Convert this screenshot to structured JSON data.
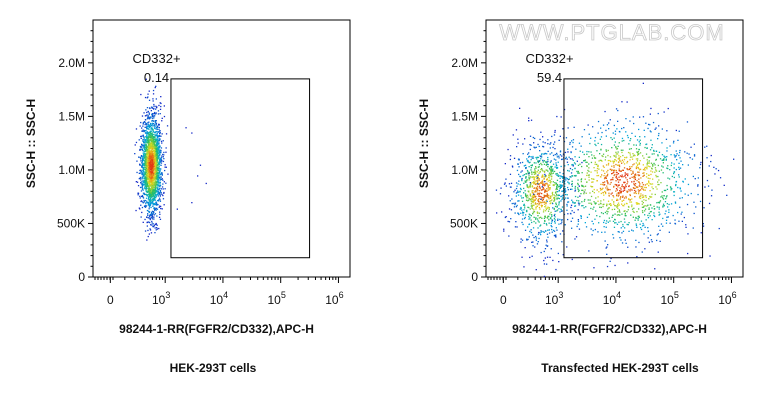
{
  "watermark": "WWW.PTGLAB.COM",
  "chart_data": [
    {
      "type": "scatter",
      "title": "",
      "caption": "HEK-293T cells",
      "xlabel": "98244-1-RR(FGFR2/CD332),APC-H",
      "ylabel": "SSC-H :: SSC-H",
      "ylim": [
        0,
        2400000
      ],
      "yticks": [
        {
          "value": 0,
          "label": "0"
        },
        {
          "value": 500000,
          "label": "500K"
        },
        {
          "value": 1000000,
          "label": "1.0M"
        },
        {
          "value": 1500000,
          "label": "1.5M"
        },
        {
          "value": 2000000,
          "label": "2.0M"
        }
      ],
      "xticks": [
        {
          "value": 0,
          "label": "0",
          "sup": ""
        },
        {
          "value": 3,
          "label": "10",
          "sup": "3"
        },
        {
          "value": 4,
          "label": "10",
          "sup": "4"
        },
        {
          "value": 5,
          "label": "10",
          "sup": "5"
        },
        {
          "value": 6,
          "label": "10",
          "sup": "6"
        }
      ],
      "gate": {
        "name": "CD332+",
        "value": "0.14",
        "x_range": [
          3.1,
          5.5
        ],
        "y_range": [
          180000,
          1850000
        ]
      },
      "populations": [
        {
          "x_center": 2.75,
          "x_spread": 0.09,
          "y_center": 1050000,
          "y_spread": 230000,
          "fraction": 0.9986
        }
      ]
    },
    {
      "type": "scatter",
      "title": "",
      "caption": "Transfected HEK-293T cells",
      "xlabel": "98244-1-RR(FGFR2/CD332),APC-H",
      "ylabel": "SSC-H :: SSC-H",
      "ylim": [
        0,
        2400000
      ],
      "yticks": [
        {
          "value": 0,
          "label": "0"
        },
        {
          "value": 500000,
          "label": "500K"
        },
        {
          "value": 1000000,
          "label": "1.0M"
        },
        {
          "value": 1500000,
          "label": "1.5M"
        },
        {
          "value": 2000000,
          "label": "2.0M"
        }
      ],
      "xticks": [
        {
          "value": 0,
          "label": "0",
          "sup": ""
        },
        {
          "value": 3,
          "label": "10",
          "sup": "3"
        },
        {
          "value": 4,
          "label": "10",
          "sup": "4"
        },
        {
          "value": 5,
          "label": "10",
          "sup": "5"
        },
        {
          "value": 6,
          "label": "10",
          "sup": "6"
        }
      ],
      "gate": {
        "name": "CD332+",
        "value": "59.4",
        "x_range": [
          3.1,
          5.5
        ],
        "y_range": [
          180000,
          1850000
        ]
      },
      "populations": [
        {
          "x_center": 2.7,
          "x_spread": 0.25,
          "y_center": 800000,
          "y_spread": 230000,
          "fraction": 0.406
        },
        {
          "x_center": 4.1,
          "x_spread": 0.65,
          "y_center": 900000,
          "y_spread": 280000,
          "fraction": 0.594
        }
      ]
    }
  ]
}
